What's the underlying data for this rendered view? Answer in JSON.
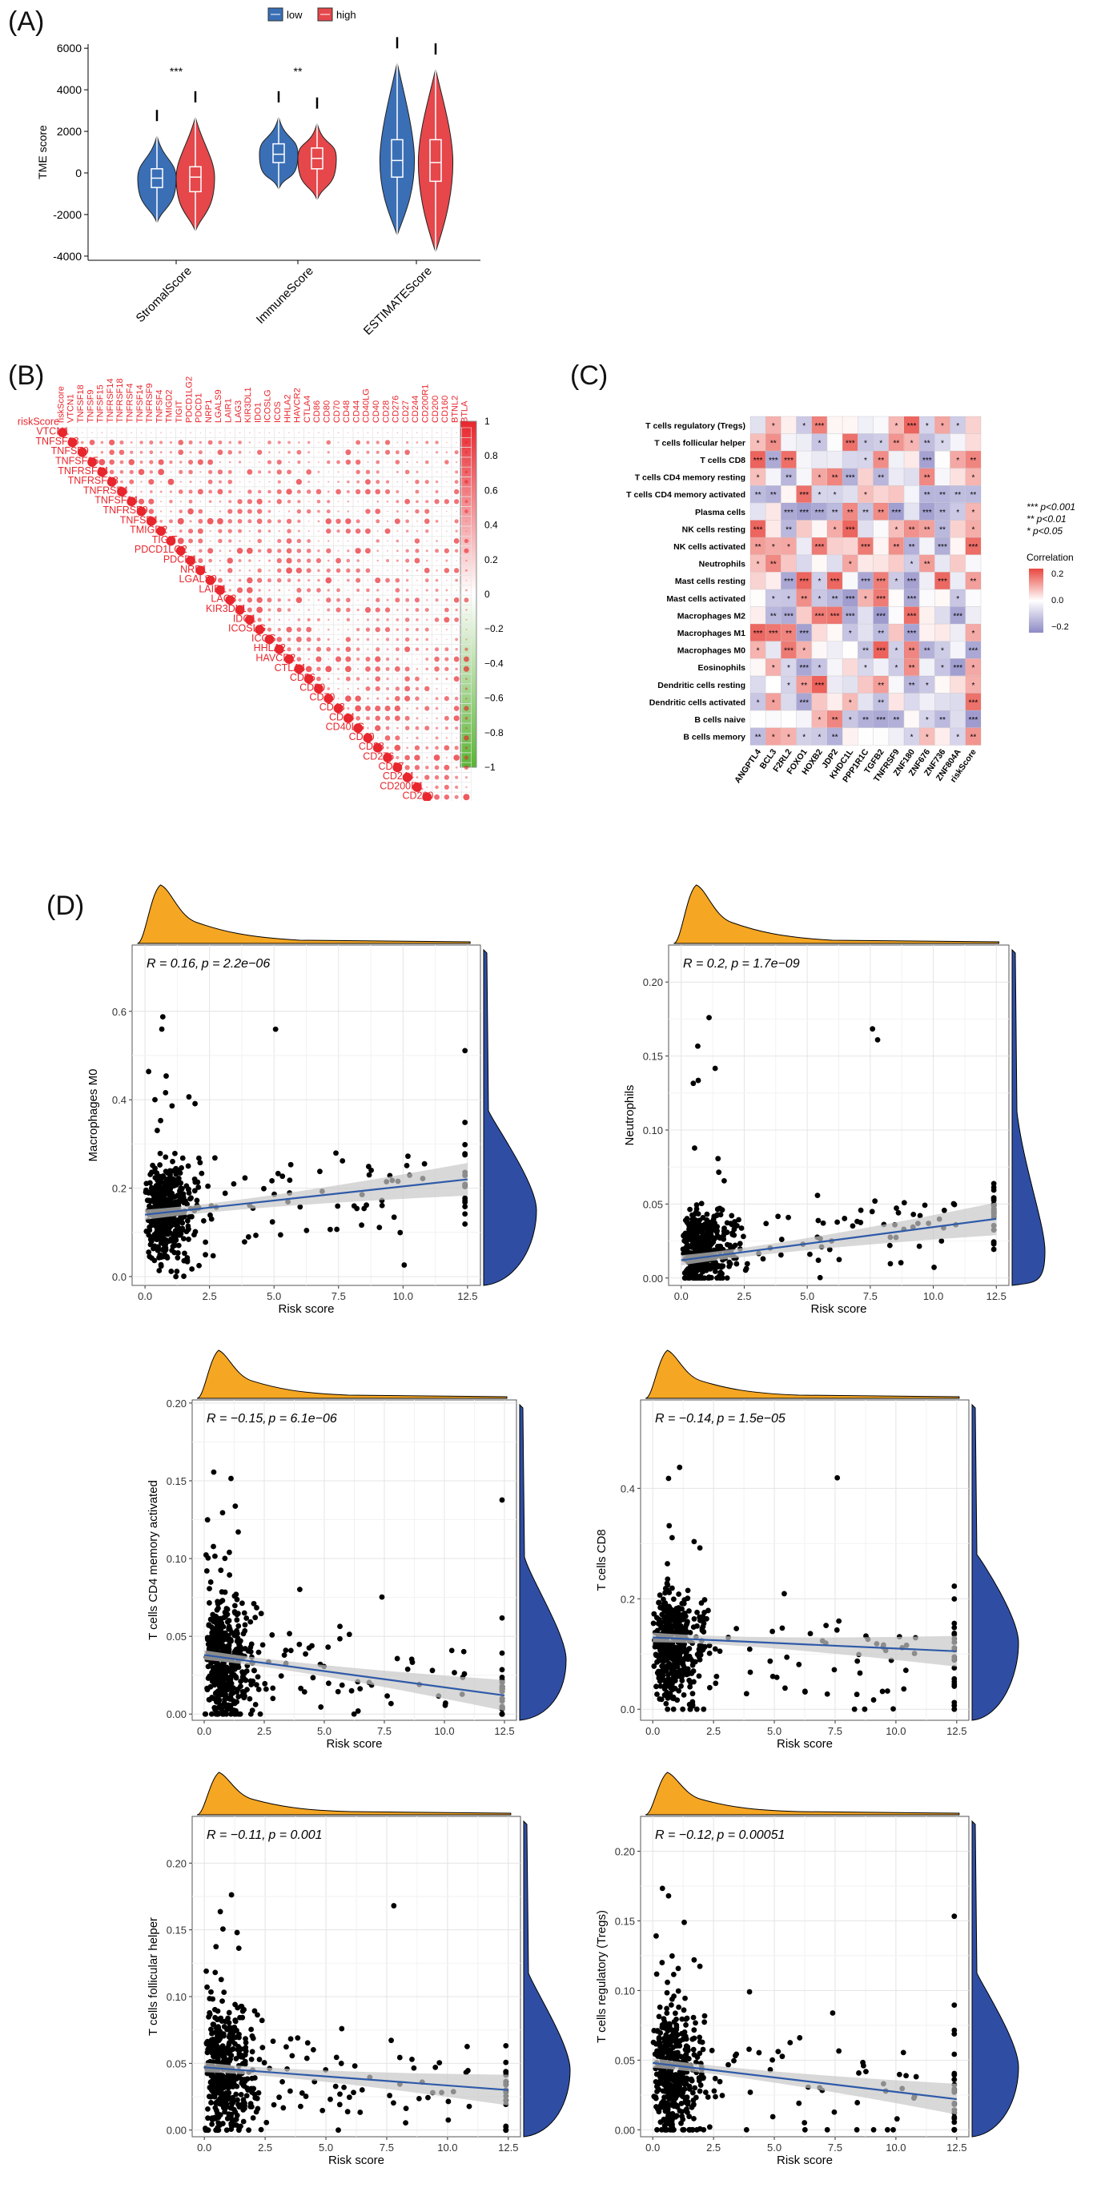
{
  "panel_labels": [
    "(A)",
    "(B)",
    "(C)",
    "(D)"
  ],
  "colors": {
    "low": "#3a6fb6",
    "high": "#e5474b",
    "orange": "#f5a623",
    "blue_density": "#2f4ea3",
    "line": "#2e5aa8",
    "band": "#c8c8c8",
    "heat_pos": "#e8473f",
    "heat_neg": "#8e8ac6",
    "corr_pos": "#e8262d",
    "corr_neg": "#5ab535"
  },
  "chart_data": [
    {
      "id": "A",
      "type": "violin",
      "title": "",
      "ylabel": "TME score",
      "ylim": [
        -4200,
        6200
      ],
      "yticks": [
        -4000,
        -2000,
        0,
        2000,
        4000,
        6000
      ],
      "legend": {
        "items": [
          "low",
          "high"
        ],
        "placement": "top"
      },
      "categories": [
        "StromalScore",
        "ImmuneScore",
        "ESTIMATEScore"
      ],
      "significance": [
        "***",
        "**",
        ""
      ],
      "series": [
        {
          "name": "low",
          "stats": [
            {
              "min": -2400,
              "q1": -700,
              "median": -250,
              "q3": 200,
              "max": 1800,
              "spread": 1.0
            },
            {
              "min": -800,
              "q1": 500,
              "median": 900,
              "q3": 1400,
              "max": 2700,
              "spread": 1.0
            },
            {
              "min": -3000,
              "q1": -200,
              "median": 600,
              "q3": 1600,
              "max": 5300,
              "spread": 0.9
            }
          ]
        },
        {
          "name": "high",
          "stats": [
            {
              "min": -2800,
              "q1": -900,
              "median": -200,
              "q3": 300,
              "max": 2700,
              "spread": 1.0
            },
            {
              "min": -1300,
              "q1": 200,
              "median": 700,
              "q3": 1200,
              "max": 2400,
              "spread": 1.0
            },
            {
              "min": -3800,
              "q1": -400,
              "median": 500,
              "q3": 1600,
              "max": 5000,
              "spread": 0.9
            }
          ]
        }
      ]
    },
    {
      "id": "B",
      "type": "heatmap",
      "style": "correlation-circles",
      "labels": [
        "riskScore",
        "VTCN1",
        "TNFSF18",
        "TNFSF9",
        "TNFSF15",
        "TNFRSF14",
        "TNFRSF18",
        "TNFRSF4",
        "TNFSF14",
        "TNFRSF9",
        "TNFSF4",
        "TMIGD2",
        "TIGIT",
        "PDCD1LG2",
        "PDCD1",
        "NRP1",
        "LGALS9",
        "LAIR1",
        "LAG3",
        "KIR3DL1",
        "IDO1",
        "ICOSLG",
        "ICOS",
        "HHLA2",
        "HAVCR2",
        "CTLA4",
        "CD86",
        "CD80",
        "CD70",
        "CD48",
        "CD44",
        "CD40LG",
        "CD40",
        "CD28",
        "CD276",
        "CD27",
        "CD244",
        "CD200R1",
        "CD200",
        "CD160",
        "BTNL2",
        "BTLA"
      ],
      "colorbar": {
        "min": -1,
        "max": 1,
        "ticks": [
          "1",
          "0.8",
          "0.6",
          "0.4",
          "0.2",
          "0",
          "−0.2",
          "−0.4",
          "−0.6",
          "−0.8",
          "−1"
        ]
      }
    },
    {
      "id": "C",
      "type": "heatmap",
      "rows": [
        "T cells regulatory (Tregs)",
        "T cells follicular helper",
        "T cells CD8",
        "T cells CD4 memory resting",
        "T cells CD4 memory activated",
        "Plasma cells",
        "NK cells resting",
        "NK cells activated",
        "Neutrophils",
        "Mast cells resting",
        "Mast cells activated",
        "Macrophages M2",
        "Macrophages M1",
        "Macrophages M0",
        "Eosinophils",
        "Dendritic cells resting",
        "Dendritic cells activated",
        "B cells naive",
        "B cells memory"
      ],
      "columns": [
        "ANGPTL4",
        "BCL3",
        "F2RL2",
        "FOXO1",
        "HOXB2",
        "JDP2",
        "KHDC1L",
        "PPP1R1C",
        "TGFB2",
        "TNFRSF9",
        "ZNF180",
        "ZNF676",
        "ZNF736",
        "ZNF804A",
        "riskScore"
      ],
      "legend": {
        "title": "Correlation",
        "ticks": [
          "0.2",
          "0.0",
          "−0.2"
        ],
        "significance": [
          "*** p<0.001",
          "** p<0.01",
          "* p<0.05"
        ]
      }
    },
    {
      "id": "D1",
      "type": "scatter",
      "xlabel": "Risk score",
      "ylabel": "Macrophages M0",
      "annotation": {
        "R": "R = 0.16",
        "p": "p = 2.2e−06"
      },
      "xlim": [
        -0.5,
        13
      ],
      "ylim": [
        -0.02,
        0.75
      ],
      "xticks": [
        "0.0",
        "2.5",
        "5.0",
        "7.5",
        "10.0",
        "12.5"
      ],
      "yticks": [
        "0.0",
        "0.2",
        "0.4",
        "0.6"
      ],
      "fit": {
        "x": [
          0,
          12.5
        ],
        "y": [
          0.14,
          0.22
        ]
      }
    },
    {
      "id": "D2",
      "type": "scatter",
      "xlabel": "Risk score",
      "ylabel": "Neutrophils",
      "annotation": {
        "R": "R = 0.2",
        "p": "p = 1.7e−09"
      },
      "xlim": [
        -0.5,
        13
      ],
      "ylim": [
        -0.005,
        0.225
      ],
      "xticks": [
        "0.0",
        "2.5",
        "5.0",
        "7.5",
        "10.0",
        "12.5"
      ],
      "yticks": [
        "0.00",
        "0.05",
        "0.10",
        "0.15",
        "0.20"
      ],
      "fit": {
        "x": [
          0,
          12.5
        ],
        "y": [
          0.012,
          0.04
        ]
      }
    },
    {
      "id": "D3",
      "type": "scatter",
      "xlabel": "Risk score",
      "ylabel": "T cells CD4 memory activated",
      "annotation": {
        "R": "R = −0.15",
        "p": "p = 6.1e−06"
      },
      "xlim": [
        -0.5,
        13
      ],
      "ylim": [
        -0.004,
        0.202
      ],
      "xticks": [
        "0.0",
        "2.5",
        "5.0",
        "7.5",
        "10.0",
        "12.5"
      ],
      "yticks": [
        "0.00",
        "0.05",
        "0.10",
        "0.15",
        "0.20"
      ],
      "fit": {
        "x": [
          0,
          12.5
        ],
        "y": [
          0.038,
          0.012
        ]
      }
    },
    {
      "id": "D4",
      "type": "scatter",
      "xlabel": "Risk score",
      "ylabel": "T cells CD8",
      "annotation": {
        "R": "R = −0.14",
        "p": "p = 1.5e−05"
      },
      "xlim": [
        -0.5,
        13
      ],
      "ylim": [
        -0.02,
        0.56
      ],
      "xticks": [
        "0.0",
        "2.5",
        "5.0",
        "7.5",
        "10.0",
        "12.5"
      ],
      "yticks": [
        "0.0",
        "0.2",
        "0.4"
      ],
      "fit": {
        "x": [
          0,
          12.5
        ],
        "y": [
          0.13,
          0.105
        ]
      }
    },
    {
      "id": "D5",
      "type": "scatter",
      "xlabel": "Risk score",
      "ylabel": "T cells follicular helper",
      "annotation": {
        "R": "R = −0.11",
        "p": "p = 0.001"
      },
      "xlim": [
        -0.5,
        13
      ],
      "ylim": [
        -0.005,
        0.235
      ],
      "xticks": [
        "0.0",
        "2.5",
        "5.0",
        "7.5",
        "10.0",
        "12.5"
      ],
      "yticks": [
        "0.00",
        "0.05",
        "0.10",
        "0.15",
        "0.20"
      ],
      "fit": {
        "x": [
          0,
          12.5
        ],
        "y": [
          0.047,
          0.03
        ]
      }
    },
    {
      "id": "D6",
      "type": "scatter",
      "xlabel": "Risk score",
      "ylabel": "T cells regulatory (Tregs)",
      "annotation": {
        "R": "R = −0.12",
        "p": "p = 0.00051"
      },
      "xlim": [
        -0.5,
        13
      ],
      "ylim": [
        -0.005,
        0.225
      ],
      "xticks": [
        "0.0",
        "2.5",
        "5.0",
        "7.5",
        "10.0",
        "12.5"
      ],
      "yticks": [
        "0.00",
        "0.05",
        "0.10",
        "0.15",
        "0.20"
      ],
      "fit": {
        "x": [
          0,
          12.5
        ],
        "y": [
          0.048,
          0.022
        ]
      }
    }
  ]
}
